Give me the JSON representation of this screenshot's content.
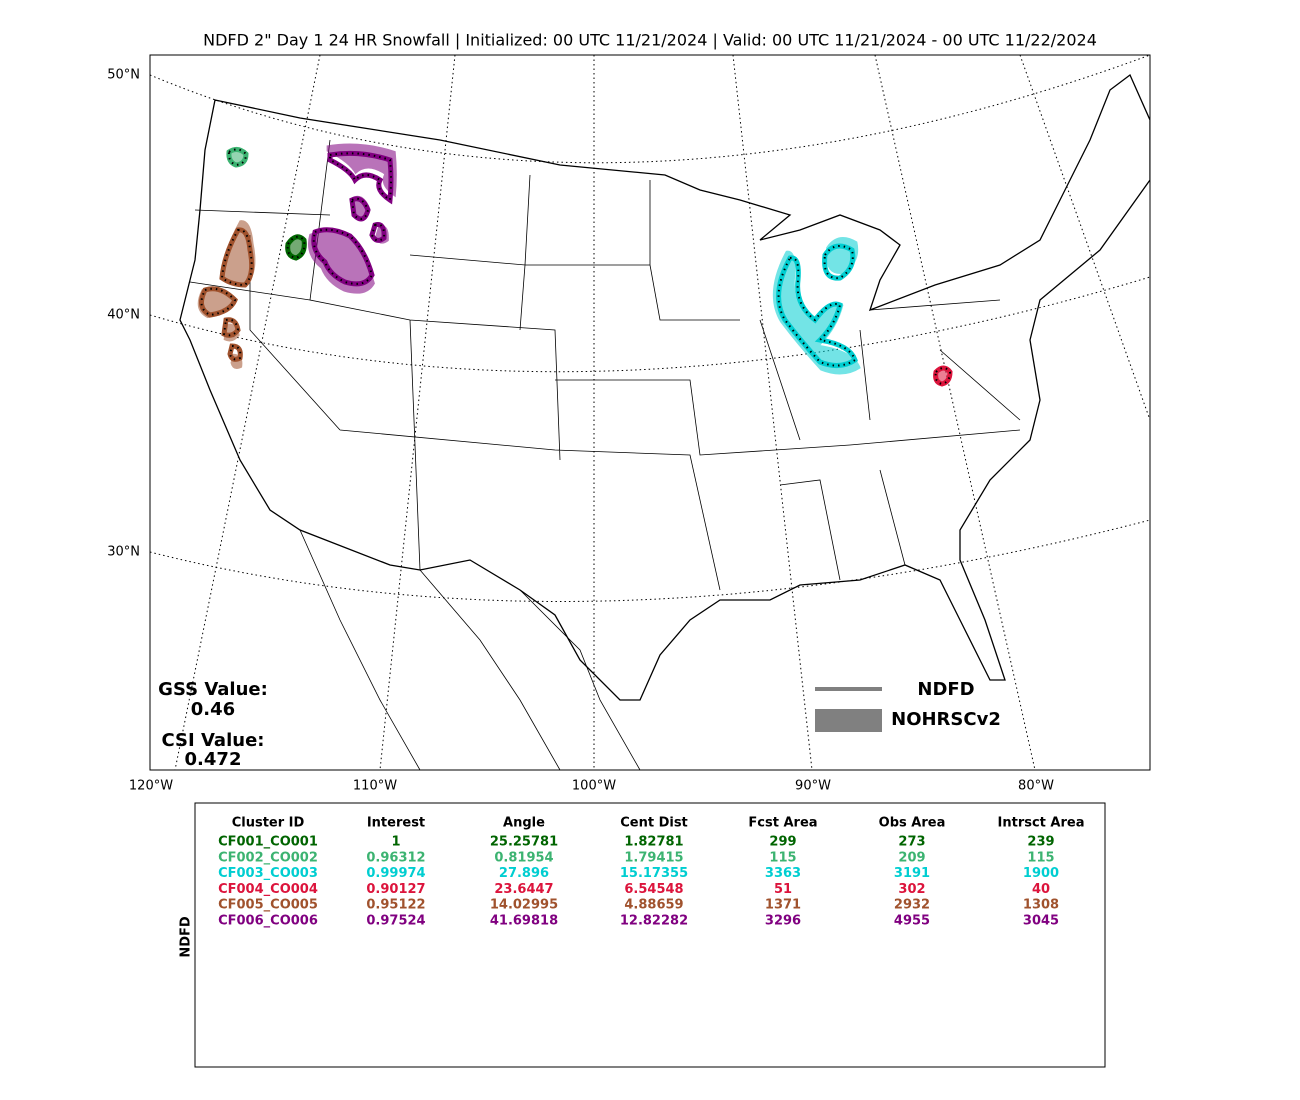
{
  "header": {
    "title": "NDFD 2\" Day 1 24 HR Snowfall | Initialized: 00 UTC 11/21/2024 | Valid: 00 UTC 11/21/2024 - 00 UTC 11/22/2024"
  },
  "map": {
    "lat_labels": [
      "50°N",
      "40°N",
      "30°N"
    ],
    "lon_labels": [
      "120°W",
      "110°W",
      "100°W",
      "90°W",
      "80°W"
    ],
    "stats": {
      "gss_label": "GSS Value:",
      "gss_value": "0.46",
      "csi_label": "CSI Value:",
      "csi_value": "0.472",
      "color": "#808080"
    },
    "legend": {
      "items": [
        "NDFD",
        "NOHRSCv2"
      ],
      "color": "#808080"
    }
  },
  "table": {
    "side_label": "NDFD",
    "columns": [
      "Cluster ID",
      "Interest",
      "Angle",
      "Cent Dist",
      "Fcst Area",
      "Obs Area",
      "Intrsct Area"
    ],
    "row_colors": [
      "#006400",
      "#3cb371",
      "#00ced1",
      "#dc143c",
      "#a0522d",
      "#800080"
    ],
    "rows": [
      [
        "CF001_CO001",
        "1",
        "25.25781",
        "1.82781",
        "299",
        "273",
        "239"
      ],
      [
        "CF002_CO002",
        "0.96312",
        "0.81954",
        "1.79415",
        "115",
        "209",
        "115"
      ],
      [
        "CF003_CO003",
        "0.99974",
        "27.896",
        "15.17355",
        "3363",
        "3191",
        "1900"
      ],
      [
        "CF004_CO004",
        "0.90127",
        "23.6447",
        "6.54548",
        "51",
        "302",
        "40"
      ],
      [
        "CF005_CO005",
        "0.95122",
        "14.02995",
        "4.88659",
        "1371",
        "2932",
        "1308"
      ],
      [
        "CF006_CO006",
        "0.97524",
        "41.69818",
        "12.82282",
        "3296",
        "4955",
        "3045"
      ]
    ]
  }
}
